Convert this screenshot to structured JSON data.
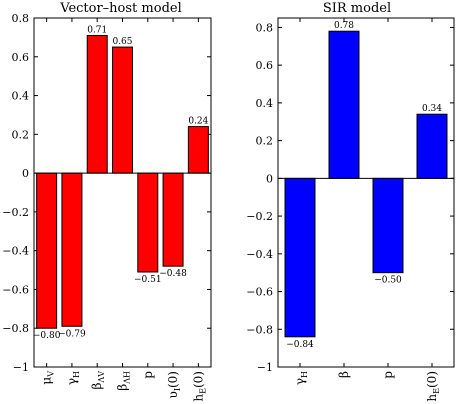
{
  "chart_data": [
    {
      "type": "bar",
      "title": "Vector–host model",
      "categories": [
        "μ_V",
        "γ_H",
        "β_{ΛV}",
        "β_{ΛH}",
        "p",
        "υ_I(0)",
        "h_E(0)"
      ],
      "values": [
        -0.8,
        -0.79,
        0.71,
        0.65,
        -0.51,
        -0.48,
        0.24
      ],
      "value_labels": [
        "−0.80",
        "−0.79",
        "0.71",
        "0.65",
        "−0.51",
        "−0.48",
        "0.24"
      ],
      "ylim": [
        -1,
        0.8
      ],
      "yticks": [
        0.8,
        0.6,
        0.4,
        0.2,
        0,
        -0.2,
        -0.4,
        -0.6,
        -0.8,
        -1
      ],
      "ytick_labels": [
        "0.8",
        "0.6",
        "0.4",
        "0.2",
        "0",
        "−0.2",
        "−0.4",
        "−0.6",
        "−0.8",
        "−1"
      ],
      "xlabel": "",
      "ylabel": "",
      "grid": false,
      "bar_color": "#ff0000",
      "edge_color": "#000000"
    },
    {
      "type": "bar",
      "title": "SIR model",
      "categories": [
        "γ_H",
        "β",
        "p",
        "h_E(0)"
      ],
      "values": [
        -0.84,
        0.78,
        -0.5,
        0.34
      ],
      "value_labels": [
        "−0.84",
        "0.78",
        "−0.50",
        "0.34"
      ],
      "ylim": [
        -1,
        0.85
      ],
      "yticks": [
        0.8,
        0.6,
        0.4,
        0.2,
        0,
        -0.2,
        -0.4,
        -0.6,
        -0.8,
        -1
      ],
      "ytick_labels": [
        "0.8",
        "0.6",
        "0.4",
        "0.2",
        "0",
        "−0.2",
        "−0.4",
        "−0.6",
        "−0.8",
        "−1"
      ],
      "xlabel": "",
      "ylabel": "",
      "grid": false,
      "bar_color": "#0000ff",
      "edge_color": "#000000"
    }
  ]
}
